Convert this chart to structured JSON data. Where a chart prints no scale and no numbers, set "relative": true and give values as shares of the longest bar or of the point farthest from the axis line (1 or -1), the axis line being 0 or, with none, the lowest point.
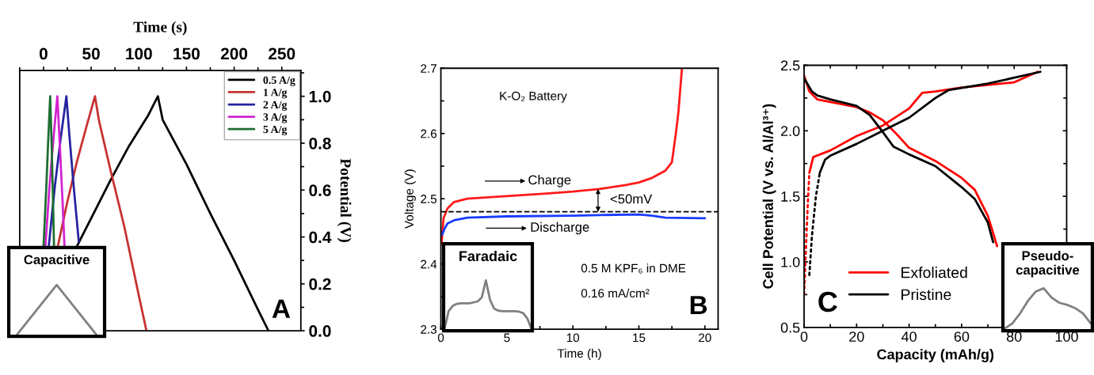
{
  "chart_data": [
    {
      "type": "line",
      "xlabel": "Time (s)",
      "ylabel": "Potential (V)",
      "xlim": [
        -25,
        270
      ],
      "xticks": [
        0,
        50,
        100,
        150,
        200,
        250
      ],
      "ylim": [
        0,
        1.11
      ],
      "yticks": [
        {
          "value": 0,
          "label": "0.0"
        },
        0.2,
        0.4,
        0.6,
        0.8,
        {
          "value": 1,
          "label": "1.0"
        }
      ],
      "legend": "top right",
      "series": [
        {
          "name": "0.5 A/g",
          "color": "#000000",
          "x": [
            35,
            50,
            70,
            90,
            110,
            120,
            125,
            150,
            175,
            200,
            225,
            236
          ],
          "values": [
            0.36,
            0.48,
            0.64,
            0.79,
            0.92,
            1.0,
            0.9,
            0.71,
            0.5,
            0.3,
            0.09,
            0.0
          ]
        },
        {
          "name": "1 A/g",
          "color": "#c83232",
          "x": [
            15,
            25,
            35,
            45,
            54,
            58,
            70,
            85,
            100,
            108
          ],
          "values": [
            0.36,
            0.55,
            0.72,
            0.87,
            1.0,
            0.9,
            0.69,
            0.44,
            0.15,
            0.0
          ]
        },
        {
          "name": "2 A/g",
          "color": "#2424a0",
          "x": [
            5.5,
            12,
            18,
            24,
            27,
            32,
            37
          ],
          "values": [
            0.36,
            0.62,
            0.82,
            1.0,
            0.84,
            0.6,
            0.38
          ]
        },
        {
          "name": "3 A/g",
          "color": "#d024d0",
          "x": [
            2,
            6,
            10,
            14.5,
            17,
            20,
            22
          ],
          "values": [
            0.36,
            0.6,
            0.8,
            1.0,
            0.8,
            0.55,
            0.36
          ]
        },
        {
          "name": "5 A/g",
          "color": "#1e6e32",
          "x": [
            0,
            3,
            5,
            7,
            8.5,
            10,
            11
          ],
          "values": [
            0.36,
            0.62,
            0.82,
            1.0,
            0.8,
            0.55,
            0.36
          ]
        }
      ],
      "annotations": [
        "A"
      ]
    },
    {
      "type": "line",
      "title": "Capacitive",
      "relative": true,
      "tick_labels": false,
      "categories": [
        null,
        null,
        null
      ],
      "series": [
        {
          "color": "#808080",
          "values": [
            0,
            1,
            0
          ]
        }
      ]
    },
    {
      "type": "line",
      "xlabel": "Time (h)",
      "ylabel": "Voltage (V)",
      "xlim": [
        0,
        21
      ],
      "xticks": [
        0,
        5,
        10,
        15,
        20
      ],
      "ylim": [
        2.3,
        2.7
      ],
      "yticks": [
        2.3,
        2.4,
        2.5,
        2.6,
        2.7
      ],
      "series": [
        {
          "color": "#ff1a1a",
          "x": [
            0.05,
            0.2,
            0.5,
            1,
            2,
            5,
            8,
            10,
            12,
            14,
            15,
            16,
            17,
            17.5,
            17.8,
            18,
            18.26
          ],
          "values": [
            2.43,
            2.47,
            2.485,
            2.495,
            2.5,
            2.504,
            2.508,
            2.511,
            2.515,
            2.521,
            2.525,
            2.532,
            2.543,
            2.556,
            2.6,
            2.634,
            2.7
          ]
        },
        {
          "color": "#1a3cff",
          "x": [
            0.1,
            0.3,
            0.5,
            1,
            2,
            5,
            10,
            12,
            15,
            16,
            17,
            20
          ],
          "values": [
            2.445,
            2.455,
            2.462,
            2.467,
            2.471,
            2.473,
            2.474,
            2.475,
            2.476,
            2.474,
            2.471,
            2.47
          ]
        }
      ],
      "ref_lines": [
        {
          "axis": "y",
          "value": 2.48,
          "color": "#000000",
          "line_style": "dashed"
        }
      ],
      "annotations": [
        "K-O₂ Battery",
        "Charge",
        "Discharge",
        "<50mV",
        "0.5 M KPF₆ in DME",
        "0.16 mA/cm²",
        "B"
      ]
    },
    {
      "type": "line",
      "title": "Faradaic",
      "relative": true,
      "tick_labels": false,
      "categories": [
        null,
        null,
        null,
        null,
        null,
        null,
        null,
        null,
        null,
        null,
        null,
        null,
        null,
        null,
        null,
        null,
        null,
        null,
        null,
        null,
        null,
        null
      ],
      "series": [
        {
          "color": "#808080",
          "values": [
            0,
            0.37,
            0.48,
            0.52,
            0.53,
            0.53,
            0.53,
            0.55,
            0.57,
            0.65,
            1.0,
            0.6,
            0.42,
            0.38,
            0.37,
            0.37,
            0.37,
            0.37,
            0.36,
            0.33,
            0.22,
            0
          ]
        }
      ]
    },
    {
      "type": "line",
      "xlabel": "Capacity (mAh/g)",
      "ylabel": "Cell Potential (V vs. Al/Al³⁺)",
      "xlim": [
        0,
        100
      ],
      "xticks": [
        0,
        20,
        40,
        60,
        80,
        100
      ],
      "ylim": [
        0.5,
        2.5
      ],
      "yticks": [
        0.5,
        {
          "value": 1,
          "label": "1.0"
        },
        1.5,
        {
          "value": 2,
          "label": "2.0"
        },
        2.5
      ],
      "legend": "bottom left",
      "series": [
        {
          "name": "Exfoliated",
          "color": "#ff0000",
          "x": [
            0,
            2,
            5,
            10,
            20,
            25,
            30,
            35,
            40,
            50,
            60,
            65,
            70,
            72,
            73.5
          ],
          "values": [
            2.42,
            2.3,
            2.24,
            2.22,
            2.18,
            2.14,
            2.08,
            1.98,
            1.87,
            1.77,
            1.64,
            1.55,
            1.35,
            1.22,
            1.12
          ]
        },
        {
          "color": "#ff0000",
          "x": [
            2,
            3.5,
            10,
            20,
            30,
            40,
            45,
            50,
            60,
            80,
            89
          ],
          "values": [
            1.68,
            1.8,
            1.85,
            1.96,
            2.04,
            2.17,
            2.29,
            2.3,
            2.33,
            2.37,
            2.45
          ]
        },
        {
          "color": "#ff0000",
          "line_style": "dotted",
          "x": [
            0,
            0.5,
            1,
            1.5,
            2
          ],
          "values": [
            0.75,
            1.0,
            1.25,
            1.48,
            1.68
          ]
        },
        {
          "name": "Pristine",
          "color": "#000000",
          "x": [
            0,
            3,
            5,
            10,
            20,
            25,
            30,
            34,
            40,
            50,
            60,
            65,
            70,
            72
          ],
          "values": [
            2.4,
            2.3,
            2.27,
            2.24,
            2.19,
            2.12,
            1.99,
            1.88,
            1.82,
            1.73,
            1.57,
            1.48,
            1.3,
            1.15
          ]
        },
        {
          "color": "#000000",
          "x": [
            6,
            8,
            10,
            20,
            30,
            40,
            50,
            55,
            70,
            90
          ],
          "values": [
            1.68,
            1.78,
            1.81,
            1.9,
            2.0,
            2.1,
            2.25,
            2.31,
            2.36,
            2.45
          ]
        },
        {
          "color": "#000000",
          "line_style": "dotted",
          "x": [
            2,
            3,
            4.5,
            6
          ],
          "values": [
            0.9,
            1.2,
            1.5,
            1.68
          ]
        }
      ],
      "annotations": [
        "C"
      ]
    },
    {
      "type": "line",
      "title": "Pseudo-\ncapacitive",
      "relative": true,
      "tick_labels": false,
      "categories": [
        null,
        null,
        null,
        null,
        null,
        null,
        null,
        null,
        null,
        null,
        null,
        null
      ],
      "series": [
        {
          "color": "#808080",
          "values": [
            0,
            0.13,
            0.38,
            0.69,
            0.92,
            1.0,
            0.77,
            0.64,
            0.59,
            0.51,
            0.38,
            0.13
          ]
        }
      ]
    }
  ]
}
